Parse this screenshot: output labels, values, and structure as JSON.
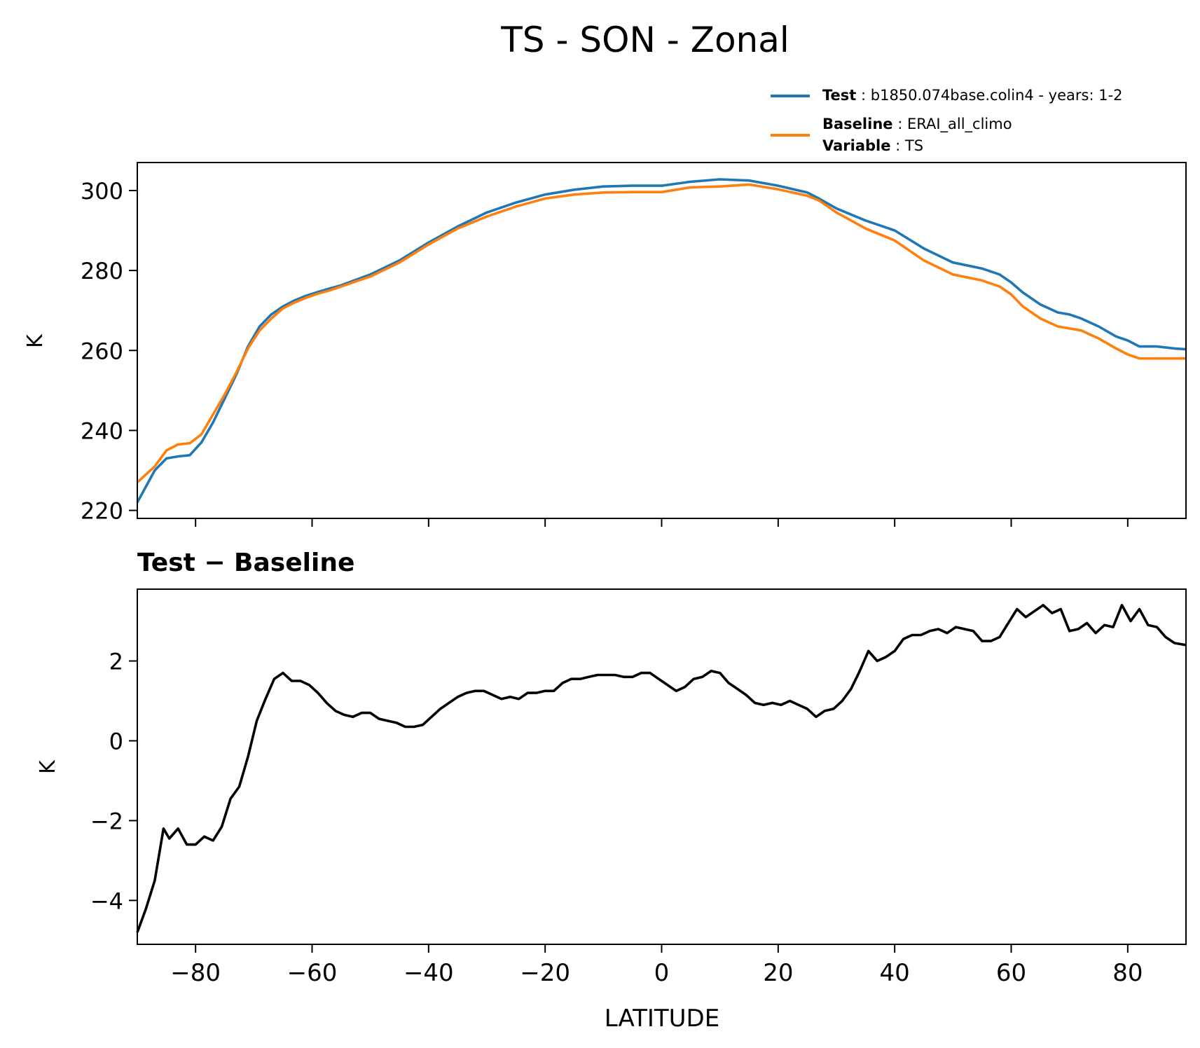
{
  "title": "TS - SON - Zonal",
  "legend": {
    "entries": [
      {
        "series_index": 0,
        "lines": [
          {
            "bold": "Test",
            "text": " : b1850.074base.colin4 - years: 1-2"
          }
        ]
      },
      {
        "series_index": 1,
        "lines": [
          {
            "bold": "Baseline",
            "text": " : ERAI_all_climo"
          },
          {
            "bold": "Variable",
            "text": " : TS"
          }
        ]
      }
    ]
  },
  "chart_data": [
    {
      "type": "line",
      "xlabel": "",
      "ylabel": "K",
      "xlim": [
        -90,
        90
      ],
      "ylim": [
        218,
        307
      ],
      "xticks": [
        -80,
        -60,
        -40,
        -20,
        0,
        20,
        40,
        60,
        80
      ],
      "xtick_labels_visible": false,
      "yticks": [
        220,
        240,
        260,
        280,
        300
      ],
      "ytick_labels": [
        "220",
        "240",
        "260",
        "280",
        "300"
      ],
      "grid": false,
      "legend_position": "above plot, right",
      "x": [
        -90,
        -87,
        -85,
        -83,
        -81,
        -79,
        -77,
        -75,
        -73,
        -71,
        -69,
        -67,
        -65,
        -63,
        -61,
        -59,
        -57,
        -55,
        -50,
        -45,
        -40,
        -35,
        -30,
        -25,
        -20,
        -15,
        -10,
        -5,
        0,
        5,
        10,
        15,
        20,
        25,
        27,
        30,
        35,
        40,
        45,
        50,
        55,
        58,
        60,
        62,
        65,
        68,
        70,
        72,
        75,
        78,
        80,
        82,
        85,
        88,
        90
      ],
      "series": [
        {
          "name": "Test",
          "color": "#1f77b4",
          "values": [
            222,
            230,
            233,
            233.5,
            233.8,
            237,
            242,
            248,
            254,
            261,
            266,
            269,
            271,
            272.5,
            273.7,
            274.6,
            275.5,
            276.3,
            279,
            282.5,
            287,
            291,
            294.5,
            297,
            299,
            300.2,
            301,
            301.2,
            301.2,
            302.2,
            302.8,
            302.5,
            301.2,
            299.5,
            298,
            295.5,
            292.5,
            290,
            285.5,
            282,
            280.5,
            279,
            277,
            274.5,
            271.5,
            269.5,
            269,
            268,
            266,
            263.5,
            262.5,
            261,
            261,
            260.5,
            260.3
          ]
        },
        {
          "name": "Baseline",
          "color": "#ff7f0e",
          "values": [
            227,
            231,
            235,
            236.5,
            236.8,
            239,
            244,
            249,
            254.5,
            260.5,
            265,
            268,
            270.5,
            272,
            273.2,
            274.2,
            275,
            276,
            278.5,
            282,
            286.5,
            290.5,
            293.5,
            296,
            298,
            299,
            299.5,
            299.6,
            299.6,
            300.8,
            301,
            301.5,
            300.3,
            298.7,
            297.5,
            294.5,
            290.5,
            287.5,
            282.5,
            279,
            277.5,
            276,
            274,
            271,
            268,
            266,
            265.5,
            265,
            263,
            260.5,
            259,
            258,
            258,
            258,
            258
          ]
        }
      ]
    },
    {
      "type": "line",
      "title": "Test − Baseline",
      "xlabel": "LATITUDE",
      "ylabel": "K",
      "xlim": [
        -90,
        90
      ],
      "ylim": [
        -5.1,
        3.8
      ],
      "xticks": [
        -80,
        -60,
        -40,
        -20,
        0,
        20,
        40,
        60,
        80
      ],
      "xtick_labels": [
        "−80",
        "−60",
        "−40",
        "−20",
        "0",
        "20",
        "40",
        "60",
        "80"
      ],
      "yticks": [
        -4,
        -2,
        0,
        2
      ],
      "ytick_labels": [
        "−4",
        "−2",
        "0",
        "2"
      ],
      "grid": false,
      "x": [
        -90,
        -88.5,
        -87,
        -85.5,
        -84.5,
        -83,
        -81.5,
        -80,
        -78.5,
        -77,
        -75.5,
        -74,
        -72.5,
        -71,
        -69.5,
        -68,
        -66.5,
        -65,
        -63.5,
        -62,
        -60.5,
        -59,
        -57.5,
        -56,
        -54.5,
        -53,
        -51.5,
        -50,
        -48.5,
        -47,
        -45.5,
        -44,
        -42.5,
        -41,
        -39.5,
        -38,
        -36.5,
        -35,
        -33.5,
        -32,
        -30.5,
        -29,
        -27.5,
        -26,
        -24.5,
        -23,
        -21.5,
        -20,
        -18.5,
        -17,
        -15.5,
        -14,
        -12.5,
        -11,
        -9.5,
        -8,
        -6.5,
        -5,
        -3.5,
        -2,
        -0.5,
        1,
        2.5,
        4,
        5.5,
        7,
        8.5,
        10,
        11.5,
        13,
        14.5,
        16,
        17.5,
        19,
        20.5,
        22,
        23.5,
        25,
        26.5,
        28,
        29.5,
        31,
        32.5,
        34,
        35.5,
        37,
        38.5,
        40,
        41.5,
        43,
        44.5,
        46,
        47.5,
        49,
        50.5,
        52,
        53.5,
        55,
        56.5,
        58,
        59.5,
        61,
        62.5,
        64,
        65.5,
        67,
        68.5,
        70,
        71.5,
        73,
        74.5,
        76,
        77.5,
        79,
        80.5,
        82,
        83.5,
        85,
        86.5,
        88,
        90
      ],
      "series": [
        {
          "color": "#000000",
          "values": [
            -4.8,
            -4.2,
            -3.5,
            -2.2,
            -2.45,
            -2.2,
            -2.6,
            -2.6,
            -2.4,
            -2.5,
            -2.15,
            -1.45,
            -1.15,
            -0.4,
            0.5,
            1.05,
            1.55,
            1.7,
            1.5,
            1.5,
            1.4,
            1.2,
            0.95,
            0.75,
            0.65,
            0.6,
            0.7,
            0.7,
            0.55,
            0.5,
            0.45,
            0.35,
            0.35,
            0.4,
            0.6,
            0.8,
            0.95,
            1.1,
            1.2,
            1.25,
            1.25,
            1.15,
            1.05,
            1.1,
            1.05,
            1.2,
            1.2,
            1.25,
            1.25,
            1.45,
            1.55,
            1.55,
            1.6,
            1.65,
            1.65,
            1.65,
            1.6,
            1.6,
            1.7,
            1.7,
            1.55,
            1.4,
            1.25,
            1.35,
            1.55,
            1.6,
            1.75,
            1.7,
            1.45,
            1.3,
            1.15,
            0.95,
            0.9,
            0.95,
            0.9,
            1.0,
            0.9,
            0.8,
            0.6,
            0.75,
            0.8,
            1.0,
            1.3,
            1.75,
            2.25,
            2.0,
            2.1,
            2.25,
            2.55,
            2.65,
            2.65,
            2.75,
            2.8,
            2.7,
            2.85,
            2.8,
            2.75,
            2.5,
            2.5,
            2.6,
            2.95,
            3.3,
            3.1,
            3.25,
            3.4,
            3.2,
            3.3,
            2.75,
            2.8,
            2.95,
            2.7,
            2.9,
            2.85,
            3.4,
            3.0,
            3.3,
            2.9,
            2.85,
            2.6,
            2.45,
            2.4
          ]
        }
      ]
    }
  ]
}
